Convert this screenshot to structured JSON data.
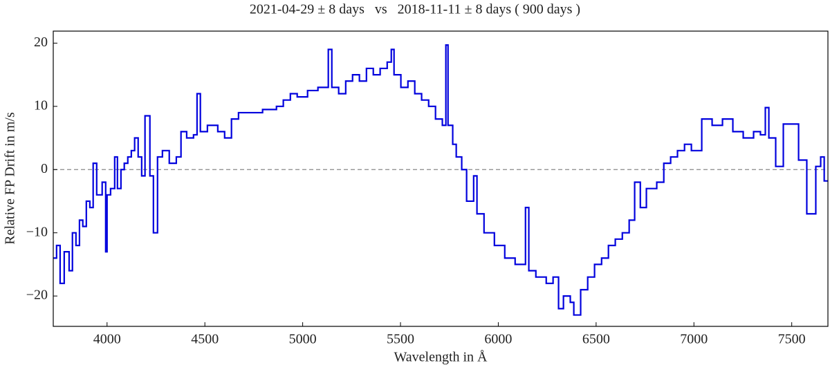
{
  "chart_data": {
    "type": "step",
    "title": "2021-04-29 ± 8 days   vs   2018-11-11 ± 8 days ( 900 days )",
    "x_label": "Wavelength in Å",
    "y_label": "Relative FP Drift in m/s",
    "xlim": [
      3725,
      7685
    ],
    "ylim": [
      -24.8,
      21.9
    ],
    "xticks": [
      4000,
      4500,
      5000,
      5500,
      6000,
      6500,
      7000,
      7500
    ],
    "yticks": [
      {
        "value": -20,
        "label": "−20"
      },
      {
        "value": -10,
        "label": "−10"
      },
      0,
      10,
      20
    ],
    "hline": 0,
    "series": [
      {
        "color": "#0000dd",
        "x": [
          3725,
          3742,
          3760,
          3781,
          3806,
          3823,
          3841,
          3859,
          3876,
          3894,
          3912,
          3929,
          3947,
          3975,
          3993,
          4000,
          4018,
          4039,
          4053,
          4071,
          4088,
          4106,
          4124,
          4141,
          4159,
          4177,
          4194,
          4219,
          4237,
          4258,
          4283,
          4318,
          4354,
          4378,
          4407,
          4442,
          4460,
          4477,
          4513,
          4566,
          4601,
          4636,
          4672,
          4725,
          4795,
          4866,
          4901,
          4937,
          4972,
          5025,
          5078,
          5131,
          5149,
          5184,
          5220,
          5255,
          5290,
          5326,
          5361,
          5396,
          5432,
          5453,
          5467,
          5502,
          5538,
          5573,
          5608,
          5644,
          5679,
          5714,
          5732,
          5743,
          5767,
          5785,
          5813,
          5838,
          5874,
          5891,
          5927,
          5980,
          6033,
          6086,
          6139,
          6156,
          6192,
          6245,
          6280,
          6308,
          6333,
          6368,
          6386,
          6421,
          6457,
          6492,
          6528,
          6563,
          6598,
          6634,
          6669,
          6697,
          6726,
          6757,
          6810,
          6846,
          6881,
          6916,
          6952,
          6987,
          7040,
          7093,
          7146,
          7199,
          7252,
          7305,
          7340,
          7365,
          7383,
          7418,
          7457,
          7535,
          7577,
          7623,
          7648,
          7666
        ],
        "values": [
          -14,
          -12,
          -18,
          -13,
          -16,
          -10,
          -12,
          -8,
          -9,
          -5,
          -6,
          1,
          -4,
          -2,
          -13,
          -4,
          -3,
          2,
          -3,
          0,
          1,
          2,
          3,
          5,
          2,
          -1,
          8.5,
          -1,
          -10,
          2,
          3,
          1,
          2,
          6,
          5,
          5.5,
          12,
          6,
          7,
          6,
          5,
          8,
          9,
          9,
          9.5,
          10,
          11,
          12,
          11.5,
          12.5,
          13,
          19,
          13,
          12,
          14,
          15,
          14,
          16,
          15,
          16,
          17,
          19,
          15,
          13,
          14,
          12,
          11,
          10,
          8,
          7,
          19.7,
          7,
          4,
          2,
          0,
          -5,
          -1,
          -7,
          -10,
          -12,
          -14,
          -15,
          -6,
          -16,
          -17,
          -18,
          -17,
          -22,
          -20,
          -21,
          -23,
          -19,
          -17,
          -15,
          -14,
          -12,
          -11,
          -10,
          -8,
          -2,
          -6,
          -3,
          -2,
          1,
          2,
          3,
          4,
          3,
          8,
          7,
          8,
          6,
          5,
          6,
          5.5,
          9.8,
          5,
          0.5,
          7.2,
          1.5,
          -7,
          0.5,
          2,
          -1.8
        ]
      }
    ]
  }
}
